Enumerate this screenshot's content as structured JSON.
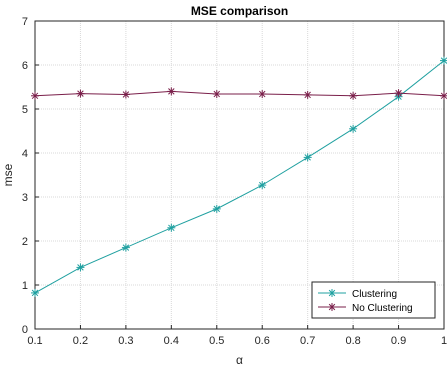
{
  "chart_data": {
    "type": "line",
    "title": "MSE comparison",
    "xlabel": "α",
    "ylabel": "mse",
    "xlim": [
      0.1,
      1
    ],
    "ylim": [
      0,
      7
    ],
    "x_ticks": [
      "0.1",
      "0.2",
      "0.3",
      "0.4",
      "0.5",
      "0.6",
      "0.7",
      "0.8",
      "0.9",
      "1"
    ],
    "y_ticks": [
      "0",
      "1",
      "2",
      "3",
      "4",
      "5",
      "6",
      "7"
    ],
    "grid": true,
    "legend_position": "bottom-right",
    "x": [
      0.1,
      0.2,
      0.3,
      0.4,
      0.5,
      0.6,
      0.7,
      0.8,
      0.9,
      1.0
    ],
    "series": [
      {
        "name": "Clustering",
        "color": "#1fa0a0",
        "marker": "asterisk",
        "values": [
          0.82,
          1.4,
          1.85,
          2.3,
          2.73,
          3.27,
          3.9,
          4.55,
          5.28,
          6.1
        ]
      },
      {
        "name": "No Clustering",
        "color": "#7a1f4a",
        "marker": "asterisk",
        "values": [
          5.3,
          5.35,
          5.33,
          5.4,
          5.34,
          5.34,
          5.32,
          5.3,
          5.36,
          5.3
        ]
      }
    ]
  }
}
